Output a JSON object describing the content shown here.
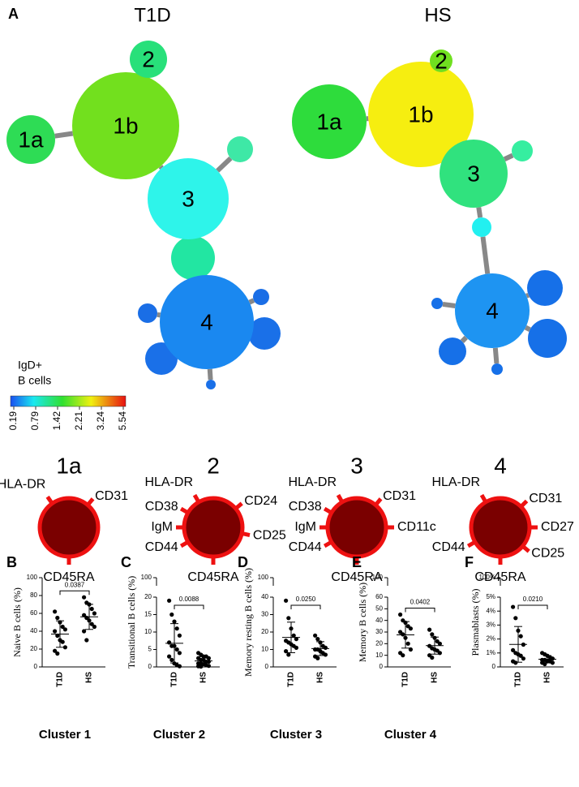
{
  "panel_a": {
    "label": "A",
    "trees": [
      {
        "title": "T1D",
        "nodes": [
          {
            "label": "1a",
            "color": "#2edc55"
          },
          {
            "label": "1b",
            "color": "#72e01e"
          },
          {
            "label": "2",
            "color": "#28e07a"
          },
          {
            "label": "3",
            "color": "#2ef4ea"
          },
          {
            "label": "4",
            "color": "#1a88f0"
          }
        ]
      },
      {
        "title": "HS",
        "nodes": [
          {
            "label": "1a",
            "color": "#2edc3c"
          },
          {
            "label": "1b",
            "color": "#f6ee10"
          },
          {
            "label": "2",
            "color": "#70e020"
          },
          {
            "label": "3",
            "color": "#30e27e"
          },
          {
            "label": "4",
            "color": "#1e94f2"
          }
        ]
      }
    ],
    "colorbar": {
      "label": [
        "IgD+",
        "B cells"
      ],
      "ticks": [
        0.19,
        0.79,
        1.42,
        2.21,
        3.24,
        5.54
      ]
    }
  },
  "markers": [
    {
      "title": "1a",
      "markers": [
        "HLA-DR",
        "CD31",
        "CD45RA"
      ]
    },
    {
      "title": "2",
      "markers": [
        "HLA-DR",
        "CD24",
        "CD38",
        "CD25",
        "IgM",
        "CD44",
        "CD45RA"
      ]
    },
    {
      "title": "3",
      "markers": [
        "HLA-DR",
        "CD31",
        "CD38",
        "CD11c",
        "IgM",
        "CD44",
        "CD45RA"
      ]
    },
    {
      "title": "4",
      "markers": [
        "HLA-DR",
        "CD31",
        "CD27",
        "CD25",
        "CD44",
        "CD45RA"
      ]
    }
  ],
  "plots": [
    {
      "type": "scatter",
      "label": "B",
      "ylabel": "Naive B cells (%)",
      "categories": [
        "T1D",
        "HS"
      ],
      "pvalue": "0.0387",
      "cluster": "Cluster 1",
      "ylim": [
        0,
        100
      ],
      "yticks": [
        0,
        20,
        40,
        60,
        80,
        100
      ],
      "series": [
        {
          "name": "T1D",
          "values": [
            62,
            55,
            50,
            45,
            42,
            40,
            35,
            30,
            28,
            22,
            18,
            15
          ]
        },
        {
          "name": "HS",
          "values": [
            78,
            72,
            70,
            65,
            60,
            58,
            55,
            52,
            48,
            45,
            40,
            30
          ]
        }
      ]
    },
    {
      "type": "scatter",
      "label": "C",
      "ylabel": "Transitional B cells (%)",
      "categories": [
        "T1D",
        "HS"
      ],
      "pvalue": "0.0088",
      "cluster": "Cluster 2",
      "ylim": [
        0,
        20
      ],
      "yticks": [
        0,
        5,
        10,
        15,
        20
      ],
      "break_tick": 100,
      "series": [
        {
          "name": "T1D",
          "values": [
            19,
            15,
            13,
            11,
            9,
            7,
            6,
            6,
            5,
            4,
            3,
            2,
            1,
            0.5,
            0.2
          ]
        },
        {
          "name": "HS",
          "values": [
            4,
            3.5,
            3,
            3,
            2.5,
            2.5,
            2,
            2,
            1.5,
            1.5,
            1,
            1,
            0.8,
            0.5,
            0.3,
            0.2,
            0.1
          ]
        }
      ]
    },
    {
      "type": "scatter",
      "label": "D",
      "ylabel": "Memory resting B cells (%)",
      "categories": [
        "T1D",
        "HS"
      ],
      "pvalue": "0.0250",
      "cluster": "Cluster 3",
      "ylim": [
        0,
        40
      ],
      "yticks": [
        0,
        10,
        20,
        30,
        40
      ],
      "break_tick": 100,
      "series": [
        {
          "name": "T1D",
          "values": [
            38,
            28,
            22,
            18,
            16,
            15,
            14,
            13,
            12,
            11,
            9,
            7
          ]
        },
        {
          "name": "HS",
          "values": [
            18,
            16,
            14,
            12,
            11,
            10,
            10,
            9,
            8,
            7,
            6,
            5
          ]
        }
      ]
    },
    {
      "type": "scatter",
      "label": "E",
      "ylabel": "Memory B cells (%)",
      "categories": [
        "T1D",
        "HS"
      ],
      "pvalue": "0.0402",
      "cluster": "Cluster 4",
      "ylim": [
        0,
        60
      ],
      "yticks": [
        0,
        10,
        20,
        30,
        40,
        50,
        60
      ],
      "break_tick": 100,
      "series": [
        {
          "name": "T1D",
          "values": [
            45,
            40,
            38,
            35,
            33,
            30,
            28,
            25,
            20,
            15,
            12,
            10
          ]
        },
        {
          "name": "HS",
          "values": [
            32,
            28,
            25,
            22,
            20,
            18,
            16,
            15,
            14,
            12,
            10,
            8
          ]
        }
      ]
    },
    {
      "type": "scatter",
      "label": "F",
      "ylabel": "Plasmablasts (%)",
      "categories": [
        "T1D",
        "HS"
      ],
      "pvalue": "0.0210",
      "ylim": [
        0,
        5
      ],
      "yticks": [
        0,
        {
          "value": 1,
          "label": "1%"
        },
        {
          "value": 2,
          "label": "2%"
        },
        {
          "value": 3,
          "label": "3%"
        },
        {
          "value": 4,
          "label": "4%"
        },
        {
          "value": 5,
          "label": "5%"
        }
      ],
      "break_tick": {
        "value": 100,
        "label": "100%"
      },
      "series": [
        {
          "name": "T1D",
          "values": [
            4.3,
            3.5,
            2.6,
            2.2,
            1.6,
            1.2,
            1.0,
            0.9,
            0.8,
            0.6,
            0.4,
            0.3
          ]
        },
        {
          "name": "HS",
          "values": [
            1.0,
            0.9,
            0.8,
            0.7,
            0.6,
            0.5,
            0.5,
            0.4,
            0.4,
            0.3,
            0.3,
            0.2
          ]
        }
      ]
    }
  ]
}
